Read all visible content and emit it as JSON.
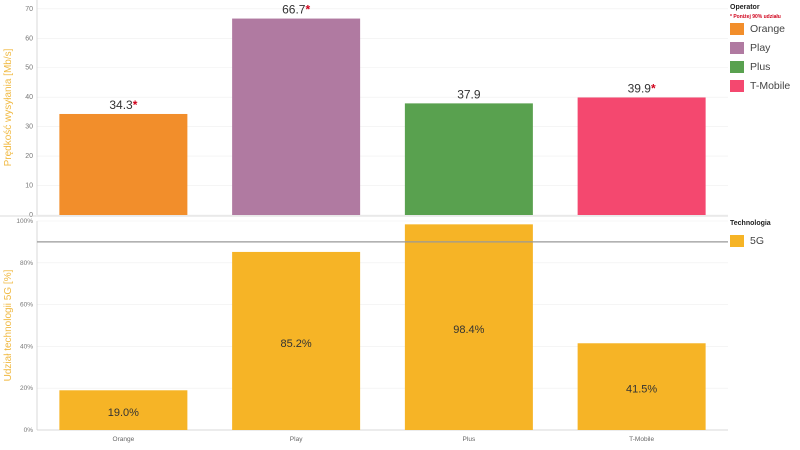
{
  "chart_data": [
    {
      "type": "bar",
      "ylabel": "Prędkość wysyłania [Mb/s]",
      "ylim": [
        0,
        73
      ],
      "yticks": [
        0,
        10,
        20,
        30,
        40,
        50,
        60,
        70
      ],
      "categories": [
        "Orange",
        "Play",
        "Plus",
        "T-Mobile"
      ],
      "values": [
        34.3,
        66.7,
        37.9,
        39.9
      ],
      "value_labels": [
        "34.3",
        "66.7",
        "37.9",
        "39.9"
      ],
      "flagged": [
        true,
        true,
        false,
        true
      ],
      "flag_mark": "*",
      "colors": [
        "#f28e2b",
        "#b07aa1",
        "#59a14f",
        "#f4486f"
      ],
      "legend": {
        "title": "Operator",
        "note": "* Poniżej 90% udziału",
        "items": [
          "Orange",
          "Play",
          "Plus",
          "T-Mobile"
        ]
      }
    },
    {
      "type": "bar",
      "ylabel": "Udział technologii 5G [%]",
      "ylim": [
        0,
        100
      ],
      "yticks": [
        0,
        20,
        40,
        60,
        80,
        100
      ],
      "ytick_labels": [
        "0%",
        "20%",
        "40%",
        "60%",
        "80%",
        "100%"
      ],
      "categories": [
        "Orange",
        "Play",
        "Plus",
        "T-Mobile"
      ],
      "values": [
        19.0,
        85.2,
        98.4,
        41.5
      ],
      "value_labels": [
        "19.0%",
        "85.2%",
        "98.4%",
        "41.5%"
      ],
      "reference_line": 90,
      "color": "#f6b426",
      "legend": {
        "title": "Technologia",
        "items": [
          "5G"
        ]
      }
    }
  ],
  "colors": {
    "axis_label": "#f0b942",
    "flag": "#d0021b"
  }
}
